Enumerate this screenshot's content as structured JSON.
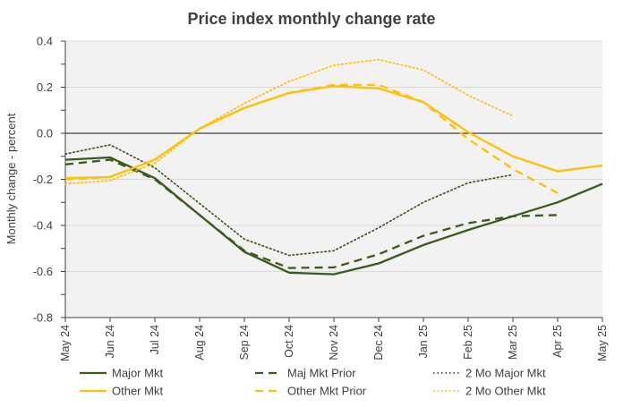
{
  "chart_data": {
    "type": "line",
    "title": "Price index monthly change rate",
    "ylabel": "Monthly change - percent",
    "xlabel": "",
    "ylim": [
      -0.8,
      0.4
    ],
    "yticks": [
      0.4,
      0.2,
      0.0,
      -0.2,
      -0.4,
      -0.6,
      -0.8
    ],
    "ytick_labels": [
      "0.4",
      "0.2",
      "0.0",
      "-0.2",
      "-0.4",
      "-0.6",
      "-0.8"
    ],
    "categories": [
      "May 24",
      "Jun 24",
      "Jul 24",
      "Aug 24",
      "Sep 24",
      "Oct 24",
      "Nov 24",
      "Dec 24",
      "Jan 25",
      "Feb 25",
      "Mar 25",
      "Apr 25",
      "May 25"
    ],
    "grid": true,
    "legend_position": "bottom",
    "series": [
      {
        "name": "Major Mkt",
        "color": "#3a5a1e",
        "style": "solid",
        "values": [
          -0.115,
          -0.105,
          -0.195,
          -0.355,
          -0.515,
          -0.605,
          -0.612,
          -0.565,
          -0.485,
          -0.42,
          -0.36,
          -0.3,
          -0.22
        ]
      },
      {
        "name": "Maj Mkt Prior",
        "color": "#3a5a1e",
        "style": "dashed",
        "values": [
          -0.135,
          -0.115,
          -0.2,
          -0.355,
          -0.51,
          -0.585,
          -0.582,
          -0.525,
          -0.445,
          -0.39,
          -0.36,
          -0.355,
          null
        ]
      },
      {
        "name": "2 Mo Major Mkt",
        "color": "#3a5a1e",
        "style": "dotted",
        "values": [
          -0.09,
          -0.05,
          -0.15,
          -0.305,
          -0.46,
          -0.53,
          -0.51,
          -0.41,
          -0.3,
          -0.215,
          -0.18,
          null,
          null
        ]
      },
      {
        "name": "Other Mkt",
        "color": "#ffc000",
        "style": "solid",
        "values": [
          -0.195,
          -0.19,
          -0.115,
          0.02,
          0.11,
          0.175,
          0.205,
          0.195,
          0.135,
          0.005,
          -0.1,
          -0.165,
          -0.14
        ]
      },
      {
        "name": "Other Mkt Prior",
        "color": "#ffc000",
        "style": "dashed",
        "values": [
          -0.2,
          -0.19,
          -0.115,
          0.02,
          0.11,
          0.175,
          0.21,
          0.21,
          0.135,
          -0.025,
          -0.155,
          -0.26,
          null
        ]
      },
      {
        "name": "2 Mo Other Mkt",
        "color": "#ffc000",
        "style": "dotted",
        "values": [
          -0.22,
          -0.205,
          -0.13,
          0.02,
          0.13,
          0.225,
          0.295,
          0.32,
          0.275,
          0.165,
          0.075,
          null,
          null
        ]
      }
    ]
  }
}
